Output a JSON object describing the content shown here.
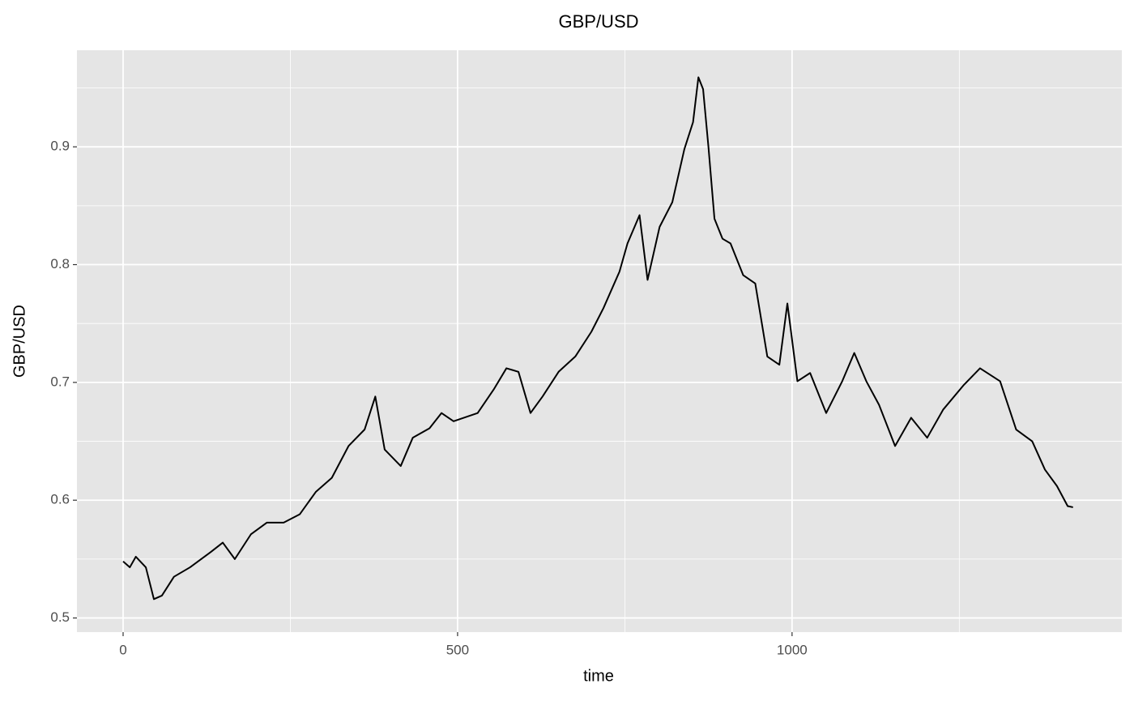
{
  "chart_data": {
    "type": "line",
    "title": "GBP/USD",
    "x_label": "time",
    "y_label": "GBP/USD",
    "x": [
      0,
      10,
      19,
      34,
      46,
      58,
      76,
      100,
      131,
      149,
      167,
      191,
      215,
      240,
      264,
      288,
      312,
      337,
      361,
      377,
      391,
      415,
      433,
      458,
      476,
      494,
      530,
      554,
      573,
      591,
      609,
      627,
      651,
      676,
      700,
      718,
      742,
      754,
      772,
      784,
      802,
      821,
      839,
      852,
      860,
      867,
      875,
      884,
      896,
      908,
      927,
      945,
      963,
      981,
      993,
      1008,
      1027,
      1051,
      1075,
      1093,
      1111,
      1130,
      1154,
      1178,
      1202,
      1226,
      1257,
      1281,
      1311,
      1335,
      1359,
      1378,
      1396,
      1412,
      1420
    ],
    "series": [
      {
        "name": "GBP/USD",
        "color": "#000000",
        "values": [
          0.548,
          0.543,
          0.552,
          0.543,
          0.516,
          0.519,
          0.535,
          0.543,
          0.556,
          0.564,
          0.55,
          0.571,
          0.581,
          0.581,
          0.588,
          0.607,
          0.619,
          0.646,
          0.66,
          0.688,
          0.643,
          0.629,
          0.653,
          0.661,
          0.674,
          0.667,
          0.674,
          0.694,
          0.712,
          0.709,
          0.674,
          0.688,
          0.709,
          0.722,
          0.743,
          0.763,
          0.794,
          0.818,
          0.842,
          0.787,
          0.832,
          0.853,
          0.898,
          0.921,
          0.959,
          0.949,
          0.9,
          0.839,
          0.822,
          0.818,
          0.791,
          0.784,
          0.722,
          0.715,
          0.767,
          0.701,
          0.708,
          0.674,
          0.701,
          0.725,
          0.701,
          0.681,
          0.646,
          0.67,
          0.653,
          0.677,
          0.698,
          0.712,
          0.701,
          0.66,
          0.65,
          0.626,
          0.612,
          0.595,
          0.594
        ]
      }
    ],
    "xlim": [
      -69,
      1493
    ],
    "ylim": [
      0.488,
      0.982
    ],
    "xticks": [
      0,
      500,
      1000
    ],
    "yticks": [
      0.5,
      0.6,
      0.7,
      0.8,
      0.9
    ],
    "x_minor_ticks": [
      250,
      750,
      1250
    ],
    "y_minor_ticks": [
      0.55,
      0.65,
      0.75,
      0.85,
      0.95
    ],
    "grid": true,
    "panel_color": "#e5e5e5"
  }
}
